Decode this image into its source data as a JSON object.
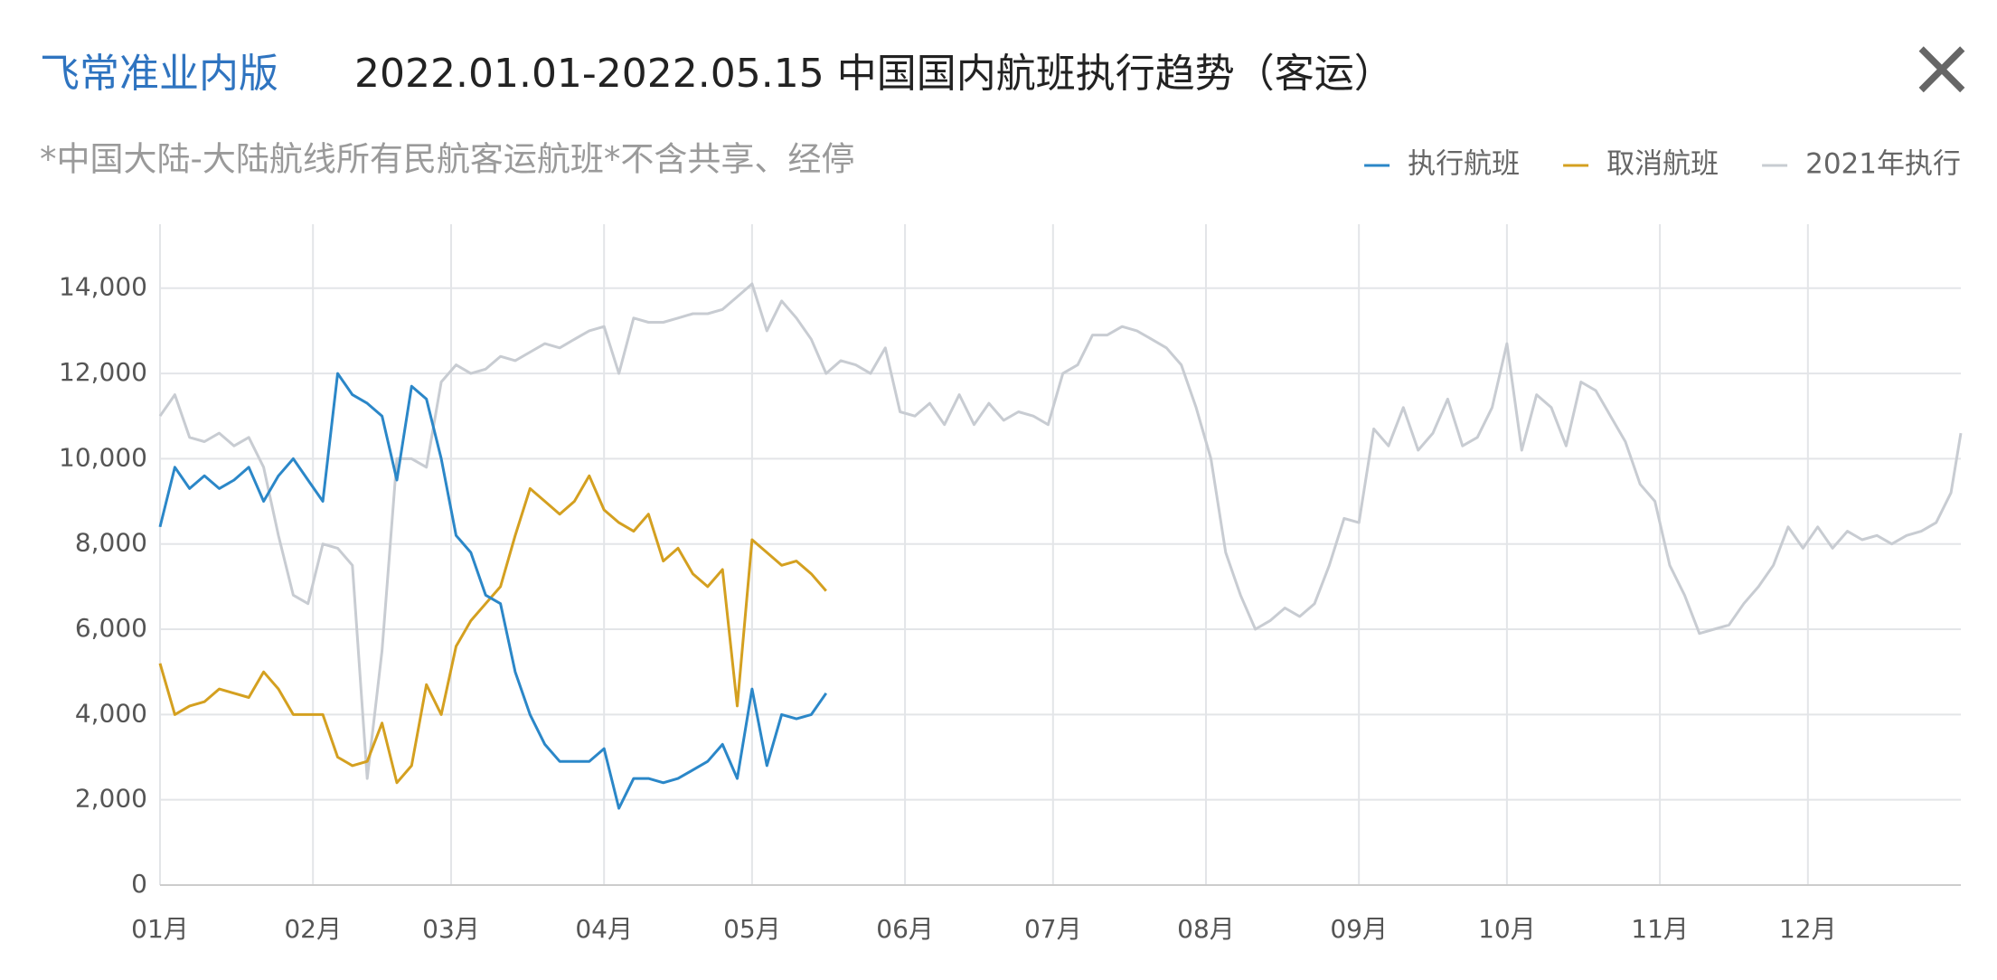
{
  "header": {
    "brand": "飞常准业内版",
    "close": "×"
  },
  "chart_data": {
    "type": "line",
    "title": "2022.01.01-2022.05.15 中国国内航班执行趋势（客运）",
    "subtitle": "*中国大陆-大陆航线所有民航客运航班*不含共享、经停",
    "x": [
      0,
      3,
      6,
      9,
      12,
      15,
      18,
      21,
      24,
      27,
      30,
      33,
      36,
      39,
      42,
      45,
      48,
      51,
      54,
      57,
      60,
      63,
      66,
      69,
      72,
      75,
      78,
      81,
      84,
      87,
      90,
      93,
      96,
      99,
      102,
      105,
      108,
      111,
      114,
      117,
      120,
      123,
      126,
      129,
      132,
      135,
      138,
      141,
      144,
      147,
      150,
      153,
      156,
      159,
      162,
      165,
      168,
      171,
      174,
      177,
      180,
      183,
      186,
      189,
      192,
      195,
      198,
      201,
      204,
      207,
      210,
      213,
      216,
      219,
      222,
      225,
      228,
      231,
      234,
      237,
      240,
      243,
      246,
      249,
      252,
      255,
      258,
      261,
      264,
      267,
      270,
      273,
      276,
      279,
      282,
      285,
      288,
      291,
      294,
      297,
      300,
      303,
      306,
      309,
      312,
      315,
      318,
      321,
      324,
      327,
      330,
      333,
      336,
      339,
      342,
      345,
      348,
      351,
      354,
      357,
      360,
      363,
      365
    ],
    "xlim": [
      0,
      365
    ],
    "xticks": [
      {
        "value": 0,
        "label": "01月"
      },
      {
        "value": 31,
        "label": "02月"
      },
      {
        "value": 59,
        "label": "03月"
      },
      {
        "value": 90,
        "label": "04月"
      },
      {
        "value": 120,
        "label": "05月"
      },
      {
        "value": 151,
        "label": "06月"
      },
      {
        "value": 181,
        "label": "07月"
      },
      {
        "value": 212,
        "label": "08月"
      },
      {
        "value": 243,
        "label": "09月"
      },
      {
        "value": 273,
        "label": "10月"
      },
      {
        "value": 304,
        "label": "11月"
      },
      {
        "value": 334,
        "label": "12月"
      }
    ],
    "ylim": [
      0,
      15500
    ],
    "yticks": [
      0,
      {
        "value": 2000,
        "label": "2,000"
      },
      {
        "value": 4000,
        "label": "4,000"
      },
      {
        "value": 6000,
        "label": "6,000"
      },
      {
        "value": 8000,
        "label": "8,000"
      },
      {
        "value": 10000,
        "label": "10,000"
      },
      {
        "value": 12000,
        "label": "12,000"
      },
      {
        "value": 14000,
        "label": "14,000"
      }
    ],
    "grid": true,
    "legend": "top-right",
    "series": [
      {
        "name": "执行航班",
        "color": "#2b87c8",
        "values": [
          8400,
          9800,
          9300,
          9600,
          9300,
          9500,
          9800,
          9000,
          9600,
          10000,
          9500,
          9000,
          12000,
          11500,
          11300,
          11000,
          9500,
          11700,
          11400,
          10000,
          8200,
          7800,
          6800,
          6600,
          5000,
          4000,
          3300,
          2900,
          2900,
          2900,
          3200,
          1800,
          2500,
          2500,
          2400,
          2500,
          2700,
          2900,
          3300,
          2500,
          4600,
          2800,
          4000,
          3900,
          4000,
          4500,
          null,
          null,
          null,
          null,
          null,
          null,
          null,
          null,
          null,
          null,
          null,
          null,
          null,
          null,
          null,
          null,
          null,
          null,
          null,
          null,
          null,
          null,
          null,
          null,
          null,
          null,
          null,
          null,
          null,
          null,
          null,
          null,
          null,
          null,
          null,
          null,
          null,
          null,
          null,
          null,
          null,
          null,
          null,
          null,
          null,
          null,
          null,
          null,
          null,
          null,
          null,
          null,
          null,
          null,
          null,
          null,
          null,
          null,
          null,
          null,
          null,
          null,
          null,
          null,
          null,
          null,
          null,
          null,
          null,
          null,
          null,
          null,
          null,
          null,
          null,
          null,
          null
        ]
      },
      {
        "name": "取消航班",
        "color": "#d4a020",
        "values": [
          5200,
          4000,
          4200,
          4300,
          4600,
          4500,
          4400,
          5000,
          4600,
          4000,
          4000,
          4000,
          3000,
          2800,
          2900,
          3800,
          2400,
          2800,
          4700,
          4000,
          5600,
          6200,
          6600,
          7000,
          8200,
          9300,
          9000,
          8700,
          9000,
          9600,
          8800,
          8500,
          8300,
          8700,
          7600,
          7900,
          7300,
          7000,
          7400,
          4200,
          8100,
          7800,
          7500,
          7600,
          7300,
          6900,
          null,
          null,
          null,
          null,
          null,
          null,
          null,
          null,
          null,
          null,
          null,
          null,
          null,
          null,
          null,
          null,
          null,
          null,
          null,
          null,
          null,
          null,
          null,
          null,
          null,
          null,
          null,
          null,
          null,
          null,
          null,
          null,
          null,
          null,
          null,
          null,
          null,
          null,
          null,
          null,
          null,
          null,
          null,
          null,
          null,
          null,
          null,
          null,
          null,
          null,
          null,
          null,
          null,
          null,
          null,
          null,
          null,
          null,
          null,
          null,
          null,
          null,
          null,
          null,
          null,
          null,
          null,
          null,
          null,
          null,
          null,
          null,
          null,
          null,
          null,
          null,
          null
        ]
      },
      {
        "name": "2021年执行",
        "color": "#c8ccd2",
        "values": [
          11000,
          11500,
          10500,
          10400,
          10600,
          10300,
          10500,
          9800,
          8200,
          6800,
          6600,
          8000,
          7900,
          7500,
          2500,
          5500,
          10000,
          10000,
          9800,
          11800,
          12200,
          12000,
          12100,
          12400,
          12300,
          12500,
          12700,
          12600,
          12800,
          13000,
          13100,
          12000,
          13300,
          13200,
          13200,
          13300,
          13400,
          13400,
          13500,
          13800,
          14100,
          13000,
          13700,
          13300,
          12800,
          12000,
          12300,
          12200,
          12000,
          12600,
          11100,
          11000,
          11300,
          10800,
          11500,
          10800,
          11300,
          10900,
          11100,
          11000,
          10800,
          12000,
          12200,
          12900,
          12900,
          13100,
          13000,
          12800,
          12600,
          12200,
          11200,
          10000,
          7800,
          6800,
          6000,
          6200,
          6500,
          6300,
          6600,
          7500,
          8600,
          8500,
          10700,
          10300,
          11200,
          10200,
          10600,
          11400,
          10300,
          10500,
          11200,
          12700,
          10200,
          11500,
          11200,
          10300,
          11800,
          11600,
          11000,
          10400,
          9400,
          9000,
          7500,
          6800,
          5900,
          6000,
          6100,
          6600,
          7000,
          7500,
          8400,
          7900,
          8400,
          7900,
          8300,
          8100,
          8200,
          8000,
          8200,
          8300,
          8500,
          9200,
          10600
        ]
      }
    ]
  }
}
